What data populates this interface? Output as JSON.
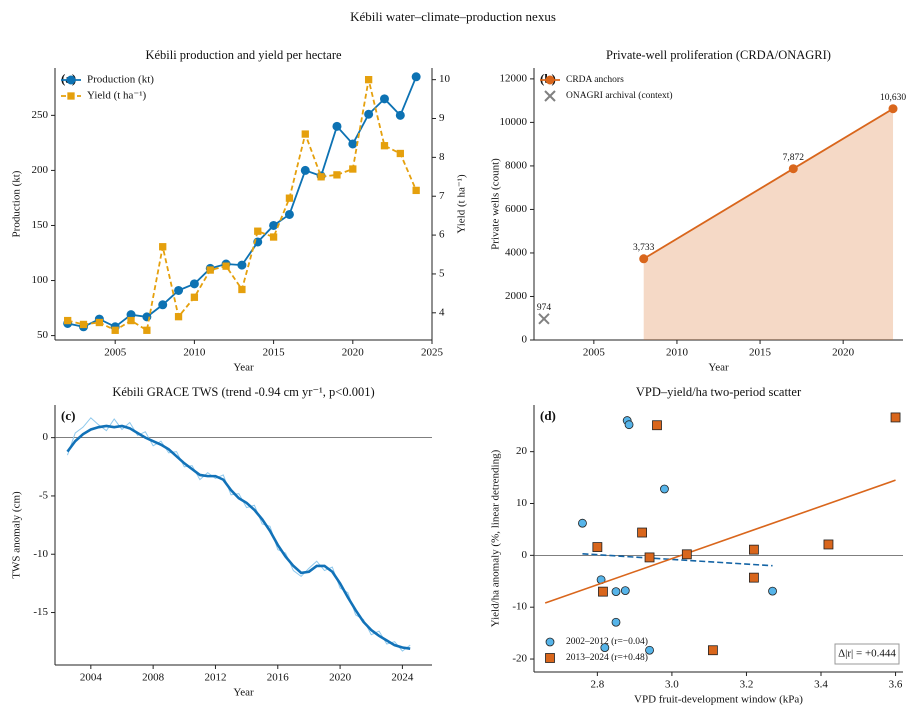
{
  "title": "Kébili water–climate–production nexus",
  "chart_data": [
    {
      "type": "line",
      "title": "Kébili production and yield per hectare",
      "panel_label": "(a)",
      "xlabel": "Year",
      "ylabel": "Production (kt)",
      "y2label": "Yield (t ha⁻¹)",
      "x": [
        2002,
        2003,
        2004,
        2005,
        2006,
        2007,
        2008,
        2009,
        2010,
        2011,
        2012,
        2013,
        2014,
        2015,
        2016,
        2017,
        2018,
        2019,
        2020,
        2021,
        2022,
        2023,
        2024
      ],
      "series": [
        {
          "name": "Production (kt)",
          "color": "#0d72b3",
          "marker": "circle",
          "linestyle": "solid",
          "values": [
            61,
            58,
            65,
            58,
            69,
            67,
            78,
            91,
            97,
            111,
            115,
            114,
            135,
            150,
            160,
            200,
            195,
            240,
            224,
            251,
            265,
            250,
            285
          ]
        },
        {
          "name": "Yield (t ha⁻¹)",
          "color": "#e5a00d",
          "marker": "square",
          "linestyle": "dashed",
          "axis": "y2",
          "values": [
            3.8,
            3.7,
            3.75,
            3.55,
            3.8,
            3.55,
            5.7,
            3.9,
            4.4,
            5.1,
            5.2,
            4.6,
            6.1,
            5.95,
            6.95,
            8.6,
            7.5,
            7.55,
            7.7,
            10.0,
            8.3,
            8.1,
            7.15
          ]
        }
      ],
      "xlim": [
        2001.2,
        2025
      ],
      "xticks": [
        2005,
        2010,
        2015,
        2020,
        2025
      ],
      "ylim": [
        46,
        293
      ],
      "yticks": [
        50,
        100,
        150,
        200,
        250
      ],
      "y2lim": [
        3.3,
        10.3
      ],
      "y2ticks": [
        4,
        5,
        6,
        7,
        8,
        9,
        10
      ],
      "legend": "upper left"
    },
    {
      "type": "line",
      "title": "Private-well proliferation (CRDA/ONAGRI)",
      "panel_label": "(b)",
      "xlabel": "Year",
      "ylabel": "Private wells (count)",
      "series": [
        {
          "name": "CRDA anchors",
          "color": "#d9661c",
          "marker": "circle",
          "linestyle": "solid",
          "fill": true,
          "x": [
            2008,
            2017,
            2023
          ],
          "values": [
            3733,
            7872,
            10630
          ],
          "value_labels": [
            "3,733",
            "7,872",
            "10,630"
          ]
        },
        {
          "name": "ONAGRI archival (context)",
          "color": "#808080",
          "marker": "x",
          "linestyle": "none",
          "x": [
            2002
          ],
          "values": [
            974
          ],
          "value_labels": [
            "974"
          ]
        }
      ],
      "xlim": [
        2001.4,
        2023.6
      ],
      "xticks": [
        2005,
        2010,
        2015,
        2020
      ],
      "ylim": [
        0,
        12500
      ],
      "yticks": [
        0,
        2000,
        4000,
        6000,
        8000,
        10000,
        12000
      ],
      "legend": "upper left"
    },
    {
      "type": "line",
      "title": "Kébili GRACE TWS (trend -0.94 cm yr⁻¹, p<0.001)",
      "panel_label": "(c)",
      "xlabel": "Year",
      "ylabel": "TWS anomaly (cm)",
      "x": [
        2002.5,
        2003,
        2003.5,
        2004,
        2004.5,
        2005,
        2005.5,
        2006,
        2006.5,
        2007,
        2007.5,
        2008,
        2008.5,
        2009,
        2009.5,
        2010,
        2010.5,
        2011,
        2011.5,
        2012,
        2012.5,
        2013,
        2013.5,
        2014,
        2014.5,
        2015,
        2015.5,
        2016,
        2016.5,
        2017,
        2017.5,
        2018,
        2018.5,
        2019,
        2019.5,
        2020,
        2020.5,
        2021,
        2021.5,
        2022,
        2022.5,
        2023,
        2023.5,
        2024,
        2024.5
      ],
      "series": [
        {
          "color": "#8ec8ec",
          "linestyle": "solid",
          "width": 1,
          "values": [
            -1.5,
            0.4,
            0.9,
            1.7,
            1.1,
            0.6,
            1.6,
            0.7,
            1.3,
            0.2,
            0.5,
            -0.7,
            -0.3,
            -1.3,
            -1.2,
            -2.5,
            -2.4,
            -3.6,
            -3.0,
            -3.5,
            -3.2,
            -4.9,
            -4.8,
            -6.0,
            -5.8,
            -7.4,
            -7.6,
            -9.6,
            -9.9,
            -11.4,
            -11.9,
            -11.2,
            -10.6,
            -11.4,
            -11.1,
            -12.9,
            -13.3,
            -15.2,
            -15.6,
            -16.9,
            -16.6,
            -17.7,
            -17.5,
            -18.3,
            -17.8
          ]
        },
        {
          "color": "#1272b8",
          "linestyle": "solid",
          "width": 2.6,
          "values": [
            -1.2,
            -0.3,
            0.3,
            0.7,
            0.9,
            1.0,
            0.9,
            1.0,
            0.8,
            0.4,
            0.0,
            -0.3,
            -0.6,
            -1.0,
            -1.6,
            -2.2,
            -2.7,
            -3.2,
            -3.3,
            -3.3,
            -3.6,
            -4.5,
            -5.2,
            -5.6,
            -6.2,
            -7.0,
            -8.0,
            -9.2,
            -10.2,
            -11.0,
            -11.6,
            -11.5,
            -11.0,
            -11.0,
            -11.5,
            -12.5,
            -13.7,
            -14.8,
            -15.8,
            -16.5,
            -17.0,
            -17.4,
            -17.8,
            -18.0,
            -18.1
          ]
        }
      ],
      "xlim": [
        2001.7,
        2025.9
      ],
      "xticks": [
        2004,
        2008,
        2012,
        2016,
        2020,
        2024
      ],
      "ylim": [
        -19.5,
        2.8
      ],
      "yticks": [
        0,
        -5,
        -10,
        -15
      ],
      "reference_line": 0
    },
    {
      "type": "scatter",
      "title": "VPD–yield/ha two-period scatter",
      "panel_label": "(d)",
      "xlabel": "VPD fruit-development window (kPa)",
      "ylabel": "Yield/ha anomaly (%, linear detrending)",
      "series": [
        {
          "name": "2002–2012 (r=−0.04)",
          "color": "#56b4e9",
          "marker": "circle",
          "linestyle": "none",
          "x": [
            2.76,
            2.81,
            2.82,
            2.85,
            2.85,
            2.88,
            2.885,
            2.875,
            2.94,
            2.98,
            3.27
          ],
          "values": [
            6.2,
            -4.7,
            -17.8,
            -12.9,
            -7.0,
            26.0,
            25.2,
            -6.8,
            -18.3,
            12.8,
            -6.9
          ],
          "fit": {
            "x": [
              2.76,
              3.27
            ],
            "y": [
              0.3,
              -2.0
            ],
            "linestyle": "dashed",
            "color": "#1464a5"
          }
        },
        {
          "name": "2013–2024 (r=+0.48)",
          "color": "#d9661c",
          "marker": "square",
          "linestyle": "none",
          "x": [
            2.8,
            2.815,
            2.92,
            2.94,
            2.96,
            3.04,
            3.11,
            3.22,
            3.22,
            3.42,
            3.6
          ],
          "values": [
            1.6,
            -7.0,
            4.4,
            -0.4,
            25.1,
            0.2,
            -18.3,
            1.1,
            -4.3,
            2.1,
            26.6
          ],
          "fit": {
            "x": [
              2.66,
              3.6
            ],
            "y": [
              -9.2,
              14.5
            ],
            "linestyle": "solid",
            "color": "#d9661c"
          }
        }
      ],
      "xlim": [
        2.63,
        3.62
      ],
      "xticks": [
        2.8,
        {
          "value": 3.0,
          "label": "3.0"
        },
        3.2,
        3.4,
        3.6
      ],
      "ylim": [
        -22.5,
        29
      ],
      "yticks": [
        -20,
        -10,
        0,
        10,
        20
      ],
      "reference_line": 0,
      "legend": "lower left",
      "annotation": "Δ|r| = +0.444"
    }
  ]
}
